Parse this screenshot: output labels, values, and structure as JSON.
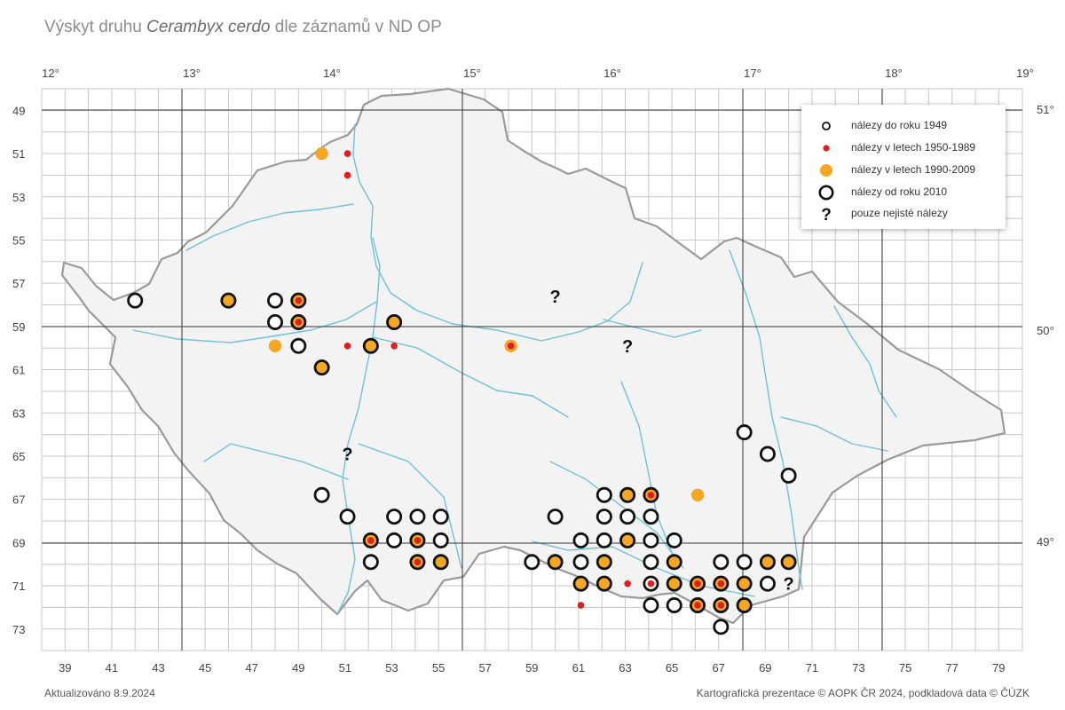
{
  "title": {
    "prefix": "Výskyt druhu ",
    "species": "Cerambyx cerdo",
    "suffix": " dle záznamů v ND OP"
  },
  "footer": {
    "updated": "Aktualizováno 8.9.2024",
    "credits": "Kartografická prezentace © AOPK ČR 2024, podkladová data © ČÚZK"
  },
  "axes": {
    "longitudes": [
      "12°",
      "13°",
      "14°",
      "15°",
      "16°",
      "17°",
      "18°",
      "19°"
    ],
    "latitudes": [
      "51°",
      "50°",
      "49°"
    ],
    "grid_rows": [
      "49",
      "51",
      "53",
      "55",
      "57",
      "59",
      "61",
      "63",
      "65",
      "67",
      "69",
      "71",
      "73"
    ],
    "grid_cols": [
      "39",
      "41",
      "43",
      "45",
      "47",
      "49",
      "51",
      "53",
      "55",
      "57",
      "59",
      "61",
      "63",
      "65",
      "67",
      "69",
      "71",
      "73",
      "75",
      "77",
      "79"
    ]
  },
  "legend": [
    {
      "key": "pre1949",
      "label": "nálezy do roku 1949"
    },
    {
      "key": "y1950",
      "label": "nálezy v letech 1950-1989"
    },
    {
      "key": "y1990",
      "label": "nálezy v letech 1990-2009"
    },
    {
      "key": "y2010",
      "label": "nálezy od roku 2010"
    },
    {
      "key": "unsure",
      "label": "pouze nejisté nálezy",
      "glyph": "?"
    }
  ],
  "colors": {
    "orange": "#f5a623",
    "red": "#dd1f1f",
    "black": "#111111",
    "river": "#6ec1d6",
    "border": "#9a9a9a",
    "grid": "#c8c8c8",
    "major": "#333333"
  },
  "records": [
    {
      "c": 42.0,
      "r": 57.8,
      "s": "o"
    },
    {
      "c": 46.0,
      "r": 57.8,
      "s": "o-f"
    },
    {
      "c": 48.0,
      "r": 57.8,
      "s": "o"
    },
    {
      "c": 49.0,
      "r": 57.8,
      "s": "o-f-r"
    },
    {
      "c": 48.0,
      "r": 58.8,
      "s": "o"
    },
    {
      "c": 49.0,
      "r": 58.8,
      "s": "o-f-r"
    },
    {
      "c": 48.0,
      "r": 59.9,
      "s": "f"
    },
    {
      "c": 49.0,
      "r": 59.9,
      "s": "o"
    },
    {
      "c": 50.0,
      "r": 60.9,
      "s": "o-f"
    },
    {
      "c": 50.0,
      "r": 51.0,
      "s": "f"
    },
    {
      "c": 51.1,
      "r": 51.0,
      "s": "r"
    },
    {
      "c": 51.1,
      "r": 52.0,
      "s": "r"
    },
    {
      "c": 51.1,
      "r": 59.9,
      "s": "r"
    },
    {
      "c": 52.1,
      "r": 59.9,
      "s": "o-f"
    },
    {
      "c": 53.1,
      "r": 58.8,
      "s": "o-f"
    },
    {
      "c": 53.1,
      "r": 59.9,
      "s": "r"
    },
    {
      "c": 58.1,
      "r": 59.9,
      "s": "f-r"
    },
    {
      "c": 60.0,
      "r": 57.6,
      "s": "q"
    },
    {
      "c": 63.1,
      "r": 59.9,
      "s": "q"
    },
    {
      "c": 51.1,
      "r": 64.9,
      "s": "q"
    },
    {
      "c": 50.0,
      "r": 66.8,
      "s": "o"
    },
    {
      "c": 51.1,
      "r": 67.8,
      "s": "o"
    },
    {
      "c": 53.1,
      "r": 67.8,
      "s": "o"
    },
    {
      "c": 54.1,
      "r": 67.8,
      "s": "o"
    },
    {
      "c": 55.1,
      "r": 67.8,
      "s": "o"
    },
    {
      "c": 52.1,
      "r": 68.9,
      "s": "o-f-r"
    },
    {
      "c": 53.1,
      "r": 68.9,
      "s": "o"
    },
    {
      "c": 54.1,
      "r": 68.9,
      "s": "o-f-r"
    },
    {
      "c": 55.1,
      "r": 68.9,
      "s": "o"
    },
    {
      "c": 52.1,
      "r": 69.9,
      "s": "o"
    },
    {
      "c": 54.1,
      "r": 69.9,
      "s": "o-f-r"
    },
    {
      "c": 55.1,
      "r": 69.9,
      "s": "o-f"
    },
    {
      "c": 60.0,
      "r": 67.8,
      "s": "o"
    },
    {
      "c": 62.1,
      "r": 66.8,
      "s": "o"
    },
    {
      "c": 63.1,
      "r": 66.8,
      "s": "o-f"
    },
    {
      "c": 64.1,
      "r": 66.8,
      "s": "o-f-r"
    },
    {
      "c": 66.1,
      "r": 66.8,
      "s": "f"
    },
    {
      "c": 62.1,
      "r": 67.8,
      "s": "o"
    },
    {
      "c": 63.1,
      "r": 67.8,
      "s": "o"
    },
    {
      "c": 64.1,
      "r": 67.8,
      "s": "o"
    },
    {
      "c": 61.1,
      "r": 68.9,
      "s": "o"
    },
    {
      "c": 62.1,
      "r": 68.9,
      "s": "o"
    },
    {
      "c": 63.1,
      "r": 68.9,
      "s": "o-f"
    },
    {
      "c": 64.1,
      "r": 68.9,
      "s": "o"
    },
    {
      "c": 65.1,
      "r": 68.9,
      "s": "o"
    },
    {
      "c": 59.0,
      "r": 69.9,
      "s": "o"
    },
    {
      "c": 60.0,
      "r": 69.9,
      "s": "o-f"
    },
    {
      "c": 61.1,
      "r": 69.9,
      "s": "o"
    },
    {
      "c": 62.1,
      "r": 69.9,
      "s": "o-f"
    },
    {
      "c": 64.1,
      "r": 69.9,
      "s": "o"
    },
    {
      "c": 65.1,
      "r": 69.9,
      "s": "o-f"
    },
    {
      "c": 67.1,
      "r": 69.9,
      "s": "o"
    },
    {
      "c": 68.1,
      "r": 69.9,
      "s": "o"
    },
    {
      "c": 69.1,
      "r": 69.9,
      "s": "o-f"
    },
    {
      "c": 70.0,
      "r": 69.9,
      "s": "o-f"
    },
    {
      "c": 61.1,
      "r": 70.9,
      "s": "o-f"
    },
    {
      "c": 62.1,
      "r": 70.9,
      "s": "o-f"
    },
    {
      "c": 63.1,
      "r": 70.9,
      "s": "r"
    },
    {
      "c": 64.1,
      "r": 70.9,
      "s": "o-r"
    },
    {
      "c": 65.1,
      "r": 70.9,
      "s": "o-f"
    },
    {
      "c": 66.1,
      "r": 70.9,
      "s": "o-f-r"
    },
    {
      "c": 67.1,
      "r": 70.9,
      "s": "o-f-r"
    },
    {
      "c": 68.1,
      "r": 70.9,
      "s": "o-f"
    },
    {
      "c": 69.1,
      "r": 70.9,
      "s": "o"
    },
    {
      "c": 70.0,
      "r": 70.9,
      "s": "q"
    },
    {
      "c": 61.1,
      "r": 71.9,
      "s": "r"
    },
    {
      "c": 64.1,
      "r": 71.9,
      "s": "o"
    },
    {
      "c": 65.1,
      "r": 71.9,
      "s": "o"
    },
    {
      "c": 66.1,
      "r": 71.9,
      "s": "o-f-r"
    },
    {
      "c": 67.1,
      "r": 71.9,
      "s": "o-f-r"
    },
    {
      "c": 68.1,
      "r": 71.9,
      "s": "o-f"
    },
    {
      "c": 67.1,
      "r": 72.9,
      "s": "o"
    },
    {
      "c": 68.1,
      "r": 63.9,
      "s": "o"
    },
    {
      "c": 69.1,
      "r": 64.9,
      "s": "o"
    },
    {
      "c": 70.0,
      "r": 65.9,
      "s": "o"
    }
  ]
}
